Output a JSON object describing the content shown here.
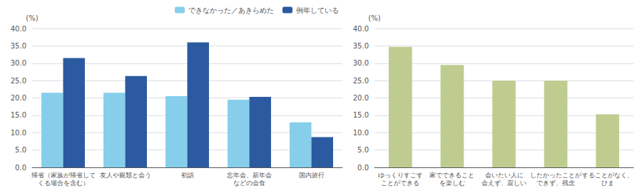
{
  "chart_data": [
    {
      "type": "bar",
      "ylabel": "(%)",
      "categories": [
        "帰省（家族が帰省して\nくる場合を含む）",
        "友人や親類と会う",
        "初詣",
        "忘年会、新年会\nなどの会食",
        "国内旅行"
      ],
      "series": [
        {
          "name": "できなかった／あきらめた",
          "color": "#87CEEB",
          "values": [
            21.5,
            21.5,
            20.5,
            19.5,
            13.0
          ]
        },
        {
          "name": "例年している",
          "color": "#2B5AA0",
          "values": [
            31.5,
            26.3,
            36.0,
            20.3,
            8.7
          ]
        }
      ],
      "ylim": [
        0,
        40
      ],
      "yticks": [
        {
          "value": 0,
          "label": "0.0"
        },
        {
          "value": 5,
          "label": "5.0"
        },
        {
          "value": 10,
          "label": "10.0"
        },
        {
          "value": 15,
          "label": "15.0"
        },
        {
          "value": 20,
          "label": "20.0"
        },
        {
          "value": 25,
          "label": "25.0"
        },
        {
          "value": 30,
          "label": "30.0"
        },
        {
          "value": 35,
          "label": "35.0"
        },
        {
          "value": 40,
          "label": "40.0"
        }
      ],
      "grid": true,
      "legend": "upper right"
    },
    {
      "type": "bar",
      "ylabel": "(%)",
      "categories": [
        "ゆっくりすごす\nことができる",
        "家でできること\nを楽しむ",
        "会いたい人に\n会えず、寂しい",
        "したかったことが\nできず、残念",
        "することがなく、\nひま"
      ],
      "values": [
        34.7,
        29.5,
        25.0,
        25.0,
        15.3
      ],
      "color": "#BFCC8F",
      "ylim": [
        0,
        40
      ],
      "yticks": [
        {
          "value": 0,
          "label": "0.0"
        },
        {
          "value": 5,
          "label": "5.0"
        },
        {
          "value": 10,
          "label": "10.0"
        },
        {
          "value": 15,
          "label": "15.0"
        },
        {
          "value": 20,
          "label": "20.0"
        },
        {
          "value": 25,
          "label": "25.0"
        },
        {
          "value": 30,
          "label": "30.0"
        },
        {
          "value": 35,
          "label": "35.0"
        },
        {
          "value": 40,
          "label": "40.0"
        }
      ],
      "grid": true
    }
  ]
}
